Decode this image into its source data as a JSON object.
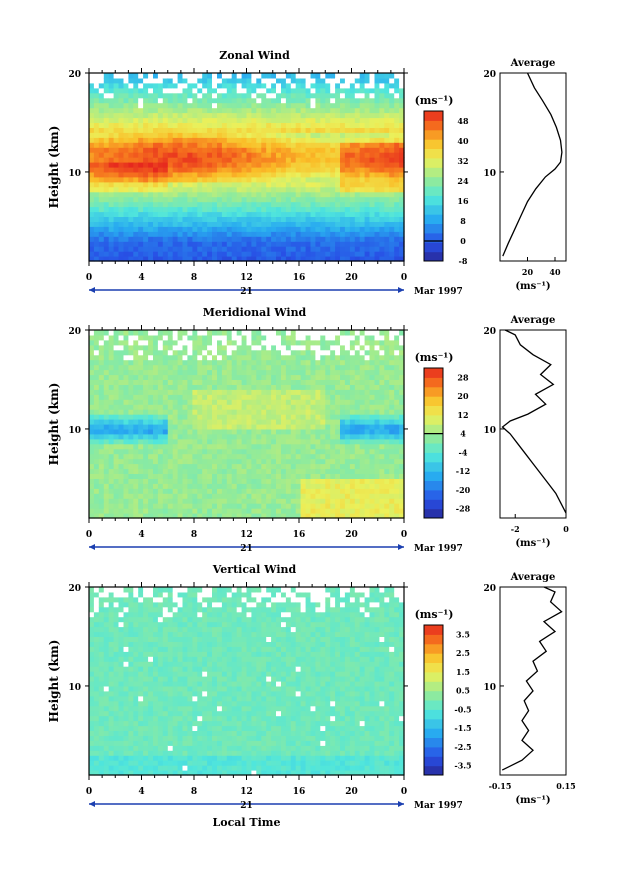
{
  "chart_data": [
    {
      "type": "heatmap",
      "title": "Zonal Wind",
      "ylabel": "Height (km)",
      "unit": "(ms⁻¹)",
      "x_ticks": [
        "0",
        "4",
        "8",
        "12",
        "16",
        "20",
        "0"
      ],
      "y_ticks": [
        "20",
        "10"
      ],
      "xlim": [
        0,
        24
      ],
      "ylim": [
        1,
        20
      ],
      "date_label": "21",
      "month_label": "Mar 1997",
      "colorbar_ticks": [
        "48",
        "40",
        "32",
        "24",
        "16",
        "8",
        "0",
        "-8"
      ],
      "colorbar_range": [
        -8,
        52
      ],
      "average": {
        "title": "Average",
        "x_ticks": [
          "20",
          "40"
        ],
        "xlim": [
          0,
          48
        ],
        "unit": "(ms⁻¹)",
        "y_ticks": [
          "20",
          "10"
        ],
        "profile": [
          [
            2,
            1.5
          ],
          [
            6,
            2.8
          ],
          [
            10,
            4
          ],
          [
            15,
            5.5
          ],
          [
            20,
            7
          ],
          [
            26,
            8.3
          ],
          [
            33,
            9.5
          ],
          [
            40,
            10.3
          ],
          [
            44,
            11
          ],
          [
            45,
            12
          ],
          [
            44,
            13.2
          ],
          [
            41,
            14.5
          ],
          [
            37,
            15.8
          ],
          [
            31,
            17.2
          ],
          [
            25,
            18.5
          ],
          [
            20,
            20
          ]
        ]
      }
    },
    {
      "type": "heatmap",
      "title": "Meridional Wind",
      "ylabel": "Height (km)",
      "unit": "(ms⁻¹)",
      "x_ticks": [
        "0",
        "4",
        "8",
        "12",
        "16",
        "20",
        "0"
      ],
      "y_ticks": [
        "20",
        "10"
      ],
      "xlim": [
        0,
        24
      ],
      "ylim": [
        1,
        20
      ],
      "date_label": "21",
      "month_label": "Mar 1997",
      "colorbar_ticks": [
        "28",
        "20",
        "12",
        "4",
        "-4",
        "-12",
        "-20",
        "-28"
      ],
      "colorbar_range": [
        -32,
        32
      ],
      "average": {
        "title": "Average",
        "x_ticks": [
          "-2",
          "0"
        ],
        "xlim": [
          -2.6,
          0
        ],
        "unit": "(ms⁻¹)",
        "y_ticks": [
          "20",
          "10"
        ],
        "profile": [
          [
            0,
            1.5
          ],
          [
            -0.2,
            2.5
          ],
          [
            -0.4,
            3.5
          ],
          [
            -0.7,
            4.5
          ],
          [
            -1.0,
            5.5
          ],
          [
            -1.3,
            6.5
          ],
          [
            -1.6,
            7.5
          ],
          [
            -1.9,
            8.5
          ],
          [
            -2.2,
            9.5
          ],
          [
            -2.5,
            10.2
          ],
          [
            -2.2,
            10.8
          ],
          [
            -1.5,
            11.5
          ],
          [
            -0.8,
            12.5
          ],
          [
            -1.2,
            13.5
          ],
          [
            -0.5,
            14.5
          ],
          [
            -1.0,
            15.5
          ],
          [
            -0.6,
            16.5
          ],
          [
            -1.3,
            17.5
          ],
          [
            -1.8,
            18.5
          ],
          [
            -2.0,
            19.5
          ],
          [
            -2.4,
            20
          ]
        ]
      }
    },
    {
      "type": "heatmap",
      "title": "Vertical Wind",
      "ylabel": "Height (km)",
      "xlabel": "Local Time",
      "unit": "(ms⁻¹)",
      "x_ticks": [
        "0",
        "4",
        "8",
        "12",
        "16",
        "20",
        "0"
      ],
      "y_ticks": [
        "20",
        "10"
      ],
      "xlim": [
        0,
        24
      ],
      "ylim": [
        1,
        20
      ],
      "date_label": "21",
      "month_label": "Mar 1997",
      "colorbar_ticks": [
        "3.5",
        "2.5",
        "1.5",
        "0.5",
        "-0.5",
        "-1.5",
        "-2.5",
        "-3.5"
      ],
      "colorbar_range": [
        -4,
        4
      ],
      "average": {
        "title": "Average",
        "x_ticks": [
          "-0.15",
          "0.15"
        ],
        "xlim": [
          -0.15,
          0.15
        ],
        "unit": "(ms⁻¹)",
        "y_ticks": [
          "20",
          "10"
        ],
        "profile": [
          [
            -0.14,
            1.5
          ],
          [
            -0.05,
            2.5
          ],
          [
            0.0,
            3.5
          ],
          [
            -0.05,
            4.5
          ],
          [
            -0.02,
            5.5
          ],
          [
            -0.05,
            6.5
          ],
          [
            -0.02,
            7.5
          ],
          [
            -0.04,
            8.5
          ],
          [
            0.0,
            9.5
          ],
          [
            -0.03,
            10.5
          ],
          [
            0.02,
            11.5
          ],
          [
            0.0,
            12.5
          ],
          [
            0.06,
            13.5
          ],
          [
            0.03,
            14.5
          ],
          [
            0.1,
            15.5
          ],
          [
            0.05,
            16.5
          ],
          [
            0.13,
            17.5
          ],
          [
            0.08,
            18.5
          ],
          [
            0.1,
            19.5
          ],
          [
            0.05,
            20
          ]
        ]
      }
    }
  ]
}
